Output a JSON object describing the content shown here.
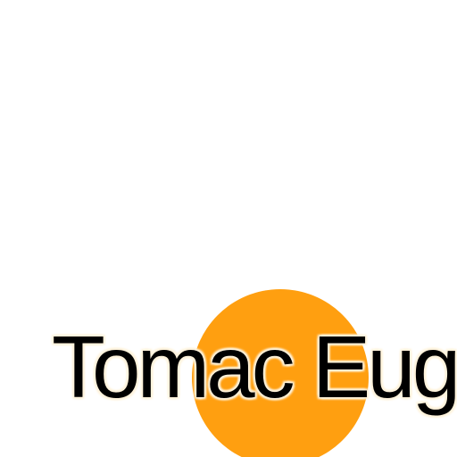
{
  "title": "Tomac Euge",
  "colors": {
    "background": "#ffffff",
    "circle": "#ff9f10",
    "text": "#000000",
    "text_glow": "#fff3dc"
  }
}
